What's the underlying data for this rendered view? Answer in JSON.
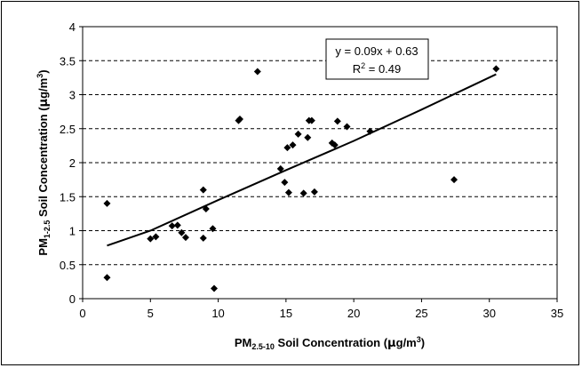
{
  "chart_data": {
    "type": "scatter",
    "title": "",
    "xlabel": {
      "prefix": "PM",
      "sub": "2.5-10",
      "mid": " Soil Concentration (",
      "mu": "μ",
      "unit": "g/m",
      "sup": "3",
      "suffix": ")"
    },
    "ylabel": {
      "prefix": "PM",
      "sub": "1-2.5",
      "mid": " Soil Concentration (",
      "mu": "μ",
      "unit": "g/m",
      "sup": "3",
      "suffix": ")"
    },
    "xlim": [
      0,
      35
    ],
    "ylim": [
      0,
      4
    ],
    "xticks": [
      "0",
      "5",
      "10",
      "15",
      "20",
      "25",
      "30",
      "35"
    ],
    "yticks": [
      "0",
      "0.5",
      "1",
      "1.5",
      "2",
      "2.5",
      "3",
      "3.5",
      "4"
    ],
    "gridlines": "horizontal-dashed",
    "marker": "diamond",
    "marker_color": "#000000",
    "points": [
      {
        "x": 1.8,
        "y": 1.4
      },
      {
        "x": 1.8,
        "y": 0.31
      },
      {
        "x": 5.0,
        "y": 0.88
      },
      {
        "x": 5.4,
        "y": 0.91
      },
      {
        "x": 6.6,
        "y": 1.07
      },
      {
        "x": 7.0,
        "y": 1.08
      },
      {
        "x": 7.3,
        "y": 0.97
      },
      {
        "x": 7.6,
        "y": 0.9
      },
      {
        "x": 8.9,
        "y": 1.6
      },
      {
        "x": 8.9,
        "y": 0.89
      },
      {
        "x": 9.1,
        "y": 1.32
      },
      {
        "x": 9.6,
        "y": 1.03
      },
      {
        "x": 9.7,
        "y": 0.15
      },
      {
        "x": 11.5,
        "y": 2.62
      },
      {
        "x": 11.6,
        "y": 2.64
      },
      {
        "x": 12.9,
        "y": 3.34
      },
      {
        "x": 14.6,
        "y": 1.91
      },
      {
        "x": 14.9,
        "y": 1.71
      },
      {
        "x": 15.1,
        "y": 2.22
      },
      {
        "x": 15.2,
        "y": 1.56
      },
      {
        "x": 15.5,
        "y": 2.26
      },
      {
        "x": 15.9,
        "y": 2.42
      },
      {
        "x": 16.3,
        "y": 1.55
      },
      {
        "x": 16.6,
        "y": 2.37
      },
      {
        "x": 16.7,
        "y": 2.62
      },
      {
        "x": 16.9,
        "y": 2.62
      },
      {
        "x": 17.1,
        "y": 1.57
      },
      {
        "x": 18.4,
        "y": 2.29
      },
      {
        "x": 18.6,
        "y": 2.26
      },
      {
        "x": 18.8,
        "y": 2.61
      },
      {
        "x": 19.5,
        "y": 2.53
      },
      {
        "x": 21.2,
        "y": 2.46
      },
      {
        "x": 27.4,
        "y": 1.75
      },
      {
        "x": 30.5,
        "y": 3.38
      }
    ],
    "trendline": {
      "type": "polynomial",
      "x_range": [
        1.8,
        30.5
      ],
      "samples": [
        {
          "x": 1.8,
          "y": 0.78
        },
        {
          "x": 5,
          "y": 1.0
        },
        {
          "x": 10,
          "y": 1.45
        },
        {
          "x": 15,
          "y": 1.89
        },
        {
          "x": 20,
          "y": 2.32
        },
        {
          "x": 25,
          "y": 2.78
        },
        {
          "x": 30.5,
          "y": 3.3
        }
      ],
      "equation": "y = 0.09x + 0.63",
      "r2_prefix": "R",
      "r2_sup": "2",
      "r2_value": " = 0.49"
    }
  }
}
